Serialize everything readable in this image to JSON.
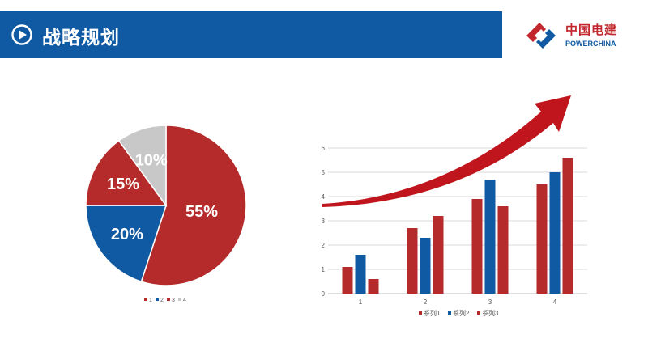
{
  "header": {
    "title": "战略规划",
    "bar_color": "#0f5aa3",
    "icon": "play-circle-icon"
  },
  "logo": {
    "name_cn": "中国电建",
    "name_en": "POWERCHINA"
  },
  "colors": {
    "red": "#b52a2a",
    "blue": "#0f5aa3",
    "gray": "#c8c8c8",
    "grid": "#d9d9d9",
    "axis_text": "#595959"
  },
  "chart_data": [
    {
      "type": "pie",
      "categories": [
        "1",
        "2",
        "3",
        "4"
      ],
      "values": [
        55,
        20,
        15,
        10
      ],
      "data_labels": [
        "55%",
        "20%",
        "15%",
        "10%"
      ],
      "colors": [
        "#b52a2a",
        "#0f5aa3",
        "#b52a2a",
        "#c8c8c8"
      ],
      "legend": {
        "position": "bottom",
        "entries": [
          "1",
          "2",
          "3",
          "4"
        ]
      },
      "start_angle_deg": 0,
      "direction": "clockwise"
    },
    {
      "type": "bar",
      "categories": [
        "1",
        "2",
        "3",
        "4"
      ],
      "series": [
        {
          "name": "系列1",
          "values": [
            1.1,
            2.7,
            3.9,
            4.5
          ],
          "color": "#b52a2a"
        },
        {
          "name": "系列2",
          "values": [
            1.6,
            2.3,
            4.7,
            5.0
          ],
          "color": "#0f5aa3"
        },
        {
          "name": "系列3",
          "values": [
            0.6,
            3.2,
            3.6,
            5.6
          ],
          "color": "#b52a2a"
        }
      ],
      "ylim": [
        0,
        6
      ],
      "yticks": [
        "0",
        "1",
        "2",
        "3",
        "4",
        "5",
        "6"
      ],
      "grid": true,
      "legend": {
        "position": "bottom"
      },
      "decoration": "red upward arrow"
    }
  ]
}
